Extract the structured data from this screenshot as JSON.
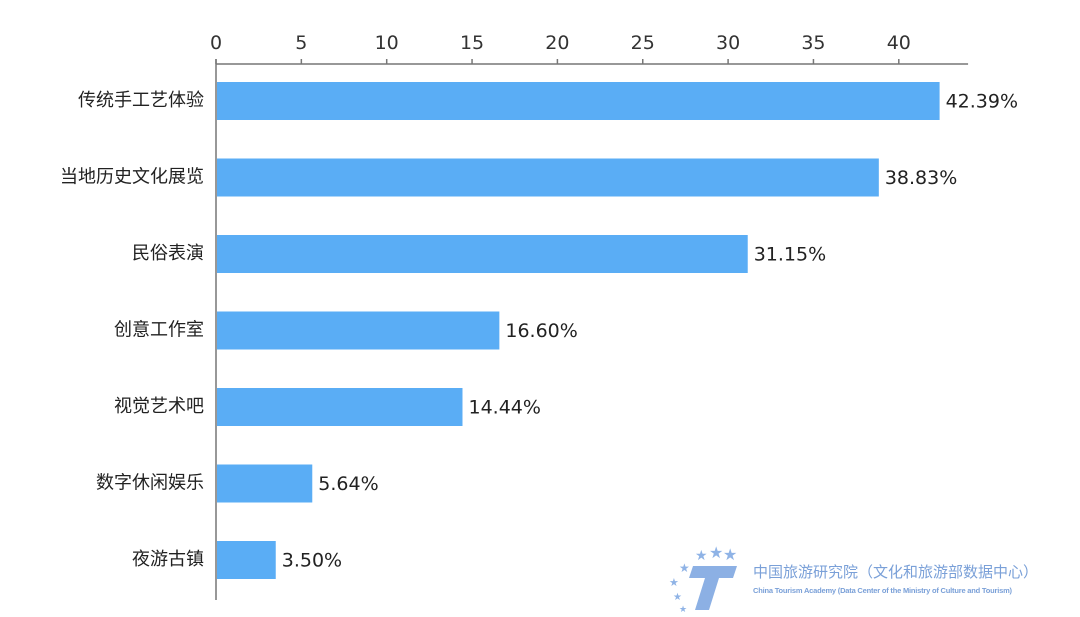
{
  "chart_data": {
    "type": "bar",
    "orientation": "horizontal",
    "categories": [
      "传统手工艺体验",
      "当地历史文化展览",
      "民俗表演",
      "创意工作室",
      "视觉艺术吧",
      "数字休闲娱乐",
      "夜游古镇"
    ],
    "values": [
      42.39,
      38.83,
      31.15,
      16.6,
      14.44,
      5.64,
      3.5
    ],
    "value_labels": [
      "42.39%",
      "38.83%",
      "31.15%",
      "16.60%",
      "14.44%",
      "5.64%",
      "3.50%"
    ],
    "xticks": [
      "0",
      "5",
      "10",
      "15",
      "20",
      "25",
      "30",
      "35",
      "40"
    ],
    "xlim": [
      0,
      44
    ],
    "axis_position": "top",
    "grid": false,
    "bar_color": "#5aadf5"
  },
  "watermark": {
    "name_cn": "中国旅游研究院（文化和旅游部数据中心）",
    "name_en": "China Tourism Academy (Data Center of the Ministry of Culture and Tourism)"
  }
}
